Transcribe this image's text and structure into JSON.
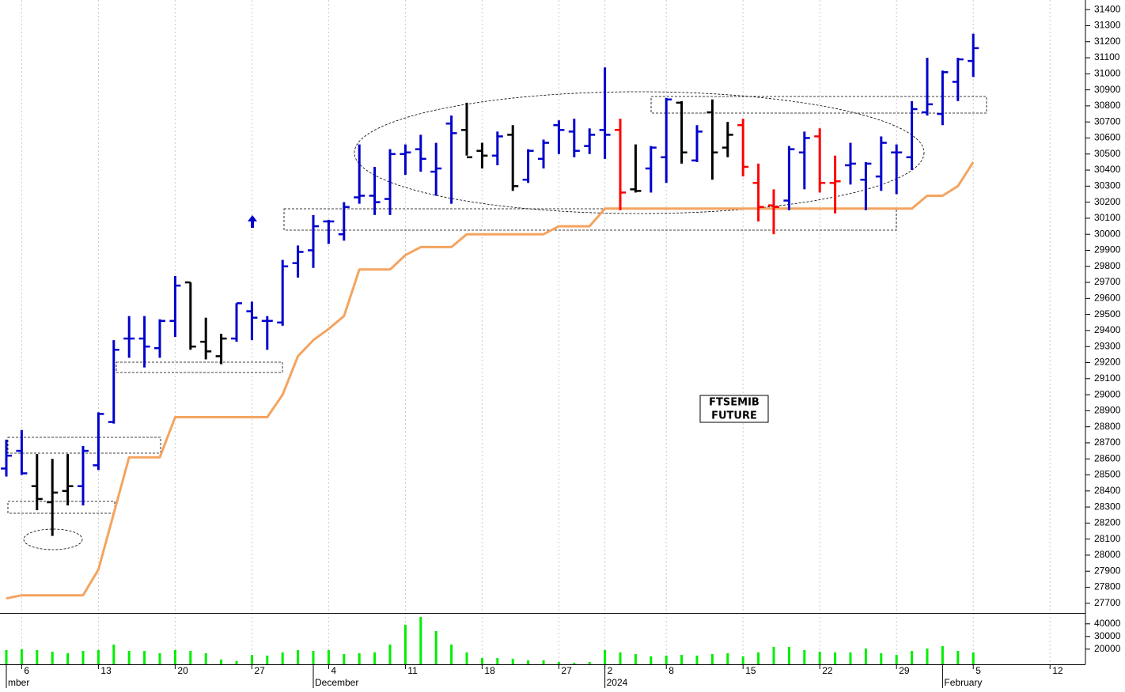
{
  "chart_data": [
    {
      "type": "ohlc",
      "categories": [
        null,
        "6",
        null,
        null,
        null,
        null,
        "13",
        null,
        null,
        null,
        null,
        "20",
        null,
        null,
        null,
        null,
        "27",
        null,
        null,
        null,
        null,
        "4",
        null,
        null,
        null,
        null,
        "11",
        null,
        null,
        null,
        null,
        "18",
        null,
        null,
        null,
        null,
        "27",
        null,
        null,
        "2",
        null,
        null,
        null,
        "8",
        null,
        null,
        null,
        null,
        "15",
        null,
        null,
        null,
        null,
        "22",
        null,
        null,
        null,
        null,
        "29",
        null,
        null,
        null,
        null,
        "5",
        null,
        null,
        null,
        null,
        "12",
        null
      ],
      "months": [
        "mber",
        null,
        null,
        null,
        null,
        null,
        null,
        null,
        null,
        null,
        null,
        null,
        null,
        null,
        null,
        null,
        null,
        null,
        null,
        null,
        "December",
        null,
        null,
        null,
        null,
        null,
        null,
        null,
        null,
        null,
        null,
        null,
        null,
        null,
        null,
        null,
        null,
        null,
        null,
        "2024",
        null,
        null,
        null,
        null,
        null,
        null,
        null,
        null,
        null,
        null,
        null,
        null,
        null,
        null,
        null,
        null,
        null,
        null,
        null,
        null,
        null,
        "February",
        null,
        null,
        null,
        null,
        null,
        null,
        null,
        null
      ],
      "open": [
        28540,
        28650,
        28430,
        28330,
        28400,
        28430,
        28560,
        28830,
        29350,
        29350,
        29290,
        29460,
        29700,
        29330,
        29240,
        29350,
        29520,
        29460,
        29450,
        29820,
        29900,
        30080,
        30000,
        30230,
        30240,
        30220,
        30500,
        30530,
        30390,
        30690,
        30650,
        30520,
        30490,
        30620,
        30340,
        30470,
        30680,
        30640,
        30550,
        30650,
        30650,
        30280,
        30410,
        30480,
        30820,
        30460,
        30760,
        30540,
        30680,
        30320,
        30180,
        30210,
        30510,
        30610,
        30320,
        30430,
        30340,
        30360,
        30510,
        30480,
        30760,
        30750,
        30950,
        31080,
        null,
        null,
        null,
        null,
        null,
        null
      ],
      "high": [
        28720,
        28780,
        28630,
        28600,
        28630,
        28680,
        28890,
        29340,
        29490,
        29490,
        29470,
        29740,
        29700,
        29480,
        29380,
        29570,
        29580,
        29490,
        29840,
        29930,
        30120,
        30090,
        30200,
        30560,
        30420,
        30530,
        30560,
        30620,
        30570,
        30740,
        30820,
        30570,
        30640,
        30680,
        30530,
        30590,
        30710,
        30720,
        30660,
        31040,
        30720,
        30560,
        30550,
        30850,
        30830,
        30680,
        30840,
        30700,
        30720,
        30440,
        30280,
        30550,
        30640,
        30660,
        30490,
        30570,
        30450,
        30610,
        30560,
        30830,
        31100,
        31020,
        31100,
        31250,
        null,
        null,
        null,
        null,
        null,
        null
      ],
      "low": [
        28490,
        28500,
        28280,
        28120,
        28310,
        28310,
        28530,
        28820,
        29230,
        29170,
        29230,
        29360,
        29280,
        29220,
        29190,
        29330,
        29340,
        29280,
        29430,
        29730,
        29790,
        29940,
        29960,
        30190,
        30120,
        30120,
        30370,
        30390,
        30240,
        30190,
        30490,
        30410,
        30430,
        30270,
        30320,
        30410,
        30500,
        30480,
        30500,
        30470,
        30150,
        30260,
        30260,
        30320,
        30440,
        30450,
        30340,
        30480,
        30360,
        30080,
        30000,
        30150,
        30280,
        30260,
        30130,
        30310,
        30150,
        30270,
        30250,
        30400,
        30740,
        30680,
        30830,
        30980,
        null,
        null,
        null,
        null,
        null,
        null
      ],
      "close": [
        28620,
        28510,
        28350,
        28390,
        28430,
        28650,
        28880,
        29280,
        29350,
        29300,
        29460,
        29680,
        29300,
        29270,
        29350,
        29570,
        29480,
        29460,
        29800,
        29890,
        30050,
        30080,
        30170,
        30240,
        30200,
        30500,
        30510,
        30470,
        30410,
        30630,
        30480,
        30490,
        30610,
        30300,
        30520,
        30570,
        30650,
        30520,
        30620,
        30620,
        30260,
        30270,
        30540,
        30840,
        30510,
        30640,
        30510,
        30620,
        30420,
        30170,
        30170,
        30530,
        30600,
        30320,
        30330,
        30440,
        30440,
        30570,
        30510,
        30780,
        30810,
        31010,
        31090,
        31160,
        null,
        null,
        null,
        null,
        null,
        null
      ],
      "bar_colors": [
        "#0000cc",
        "#0000cc",
        "#000000",
        "#000000",
        "#000000",
        "#0000cc",
        "#0000cc",
        "#0000cc",
        "#0000cc",
        "#0000cc",
        "#0000cc",
        "#0000cc",
        "#000000",
        "#000000",
        "#000000",
        "#0000cc",
        "#0000cc",
        "#0000cc",
        "#0000cc",
        "#0000cc",
        "#0000cc",
        "#0000cc",
        "#0000cc",
        "#0000cc",
        "#0000cc",
        "#0000cc",
        "#0000cc",
        "#0000cc",
        "#0000cc",
        "#0000cc",
        "#000000",
        "#000000",
        "#0000cc",
        "#000000",
        "#0000cc",
        "#0000cc",
        "#0000cc",
        "#0000cc",
        "#0000cc",
        "#0000cc",
        "#ff0000",
        "#000000",
        "#0000cc",
        "#0000cc",
        "#000000",
        "#0000cc",
        "#000000",
        "#000000",
        "#ff0000",
        "#ff0000",
        "#ff0000",
        "#0000cc",
        "#0000cc",
        "#ff0000",
        "#ff0000",
        "#0000cc",
        "#0000cc",
        "#0000cc",
        "#0000cc",
        "#0000cc",
        "#0000cc",
        "#0000cc",
        "#0000cc",
        "#0000cc",
        null,
        null,
        null,
        null,
        null,
        null
      ],
      "trail": {
        "color": "#f4a460",
        "values": [
          27730,
          27750,
          27750,
          27750,
          27750,
          27750,
          27910,
          28260,
          28610,
          28610,
          28610,
          28860,
          28860,
          28860,
          28860,
          28860,
          28860,
          28860,
          29000,
          29240,
          29340,
          29410,
          29490,
          29780,
          29780,
          29780,
          29870,
          29920,
          29920,
          29920,
          30000,
          30000,
          30000,
          30000,
          30000,
          30000,
          30050,
          30050,
          30050,
          30160,
          30160,
          30160,
          30160,
          30160,
          30160,
          30160,
          30160,
          30160,
          30160,
          30160,
          30160,
          30160,
          30160,
          30160,
          30160,
          30160,
          30160,
          30160,
          30160,
          30160,
          30240,
          30240,
          30300,
          30450,
          null,
          null,
          null,
          null,
          null,
          null
        ]
      },
      "ylim": [
        27640,
        31460
      ],
      "yticks": [
        27700,
        27800,
        27900,
        28000,
        28100,
        28200,
        28300,
        28400,
        28500,
        28600,
        28700,
        28800,
        28900,
        29000,
        29100,
        29200,
        29300,
        29400,
        29500,
        29600,
        29700,
        29800,
        29900,
        30000,
        30100,
        30200,
        30300,
        30400,
        30500,
        30600,
        30700,
        30800,
        30900,
        31000,
        31100,
        31200,
        31300,
        31400
      ],
      "grid": true,
      "annotation": [
        "FTSEMIB",
        "FUTURE"
      ]
    },
    {
      "type": "bar",
      "color": "#00ee00",
      "values": [
        19300,
        19900,
        19300,
        18000,
        16800,
        18600,
        19300,
        23600,
        18600,
        18600,
        16800,
        19300,
        18600,
        16800,
        11800,
        10500,
        15500,
        14900,
        17400,
        19300,
        18600,
        19300,
        16100,
        16800,
        17400,
        23600,
        39300,
        45500,
        34300,
        23600,
        17400,
        13000,
        13000,
        12400,
        11100,
        11100,
        9900,
        9300,
        9900,
        19300,
        17400,
        16100,
        14300,
        14900,
        15500,
        14900,
        16100,
        16800,
        14300,
        17400,
        21800,
        21800,
        19300,
        18000,
        17400,
        17400,
        20500,
        16800,
        15500,
        18600,
        20500,
        22400,
        18600,
        17400,
        null,
        null,
        null,
        null,
        null,
        null
      ],
      "ylim": [
        8000,
        48000
      ],
      "yticks": [
        20000,
        30000,
        40000
      ]
    }
  ]
}
